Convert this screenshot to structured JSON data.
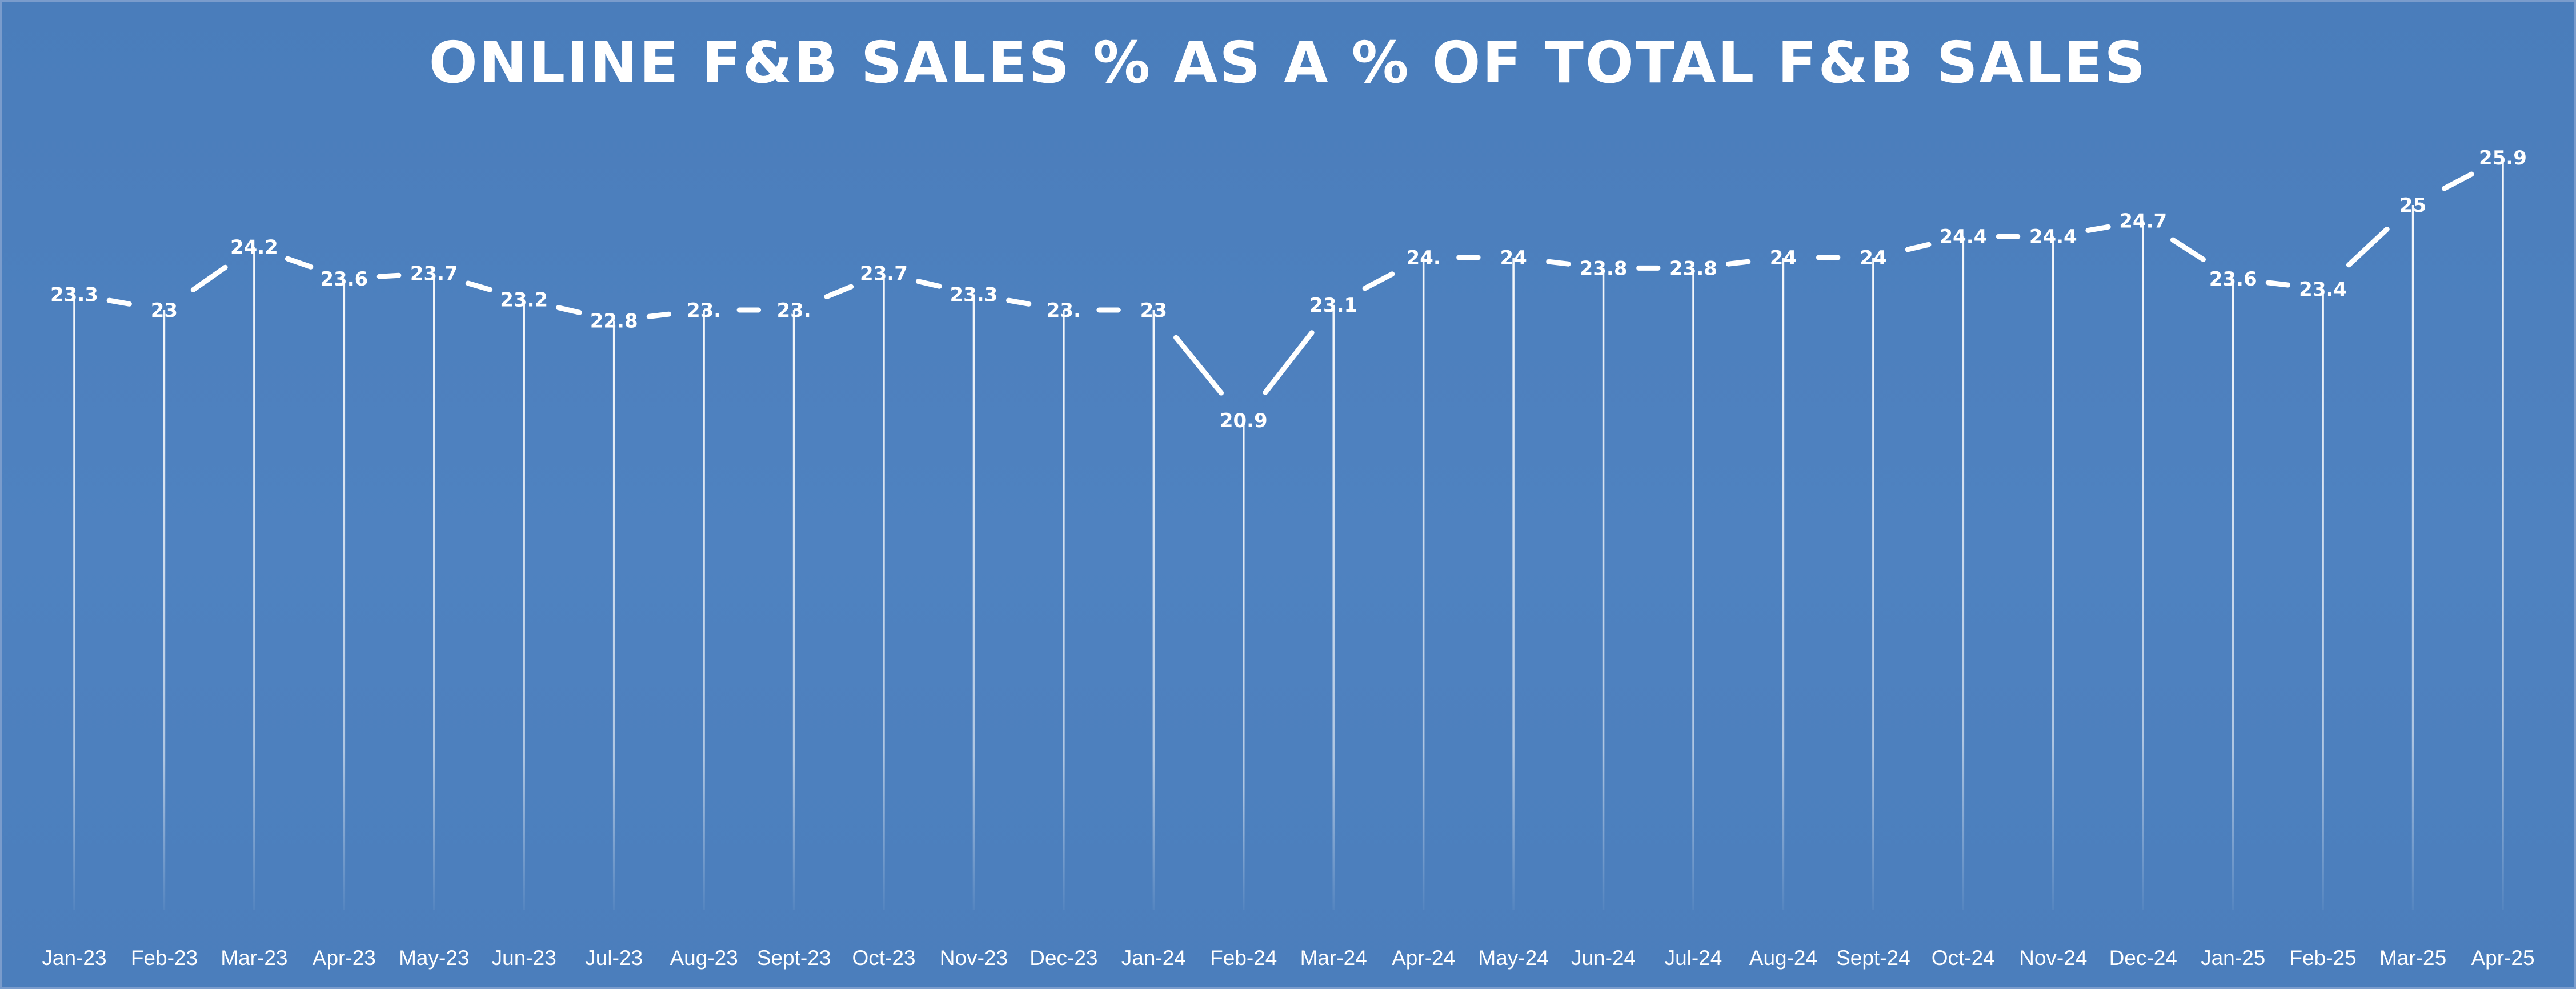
{
  "chart_data": {
    "type": "line",
    "title": "ONLINE F&B SALES % AS A % OF TOTAL F&B SALES",
    "categories": [
      "Jan-23",
      "Feb-23",
      "Mar-23",
      "Apr-23",
      "May-23",
      "Jun-23",
      "Jul-23",
      "Aug-23",
      "Sept-23",
      "Oct-23",
      "Nov-23",
      "Dec-23",
      "Jan-24",
      "Feb-24",
      "Mar-24",
      "Apr-24",
      "May-24",
      "Jun-24",
      "Jul-24",
      "Aug-24",
      "Sept-24",
      "Oct-24",
      "Nov-24",
      "Dec-24",
      "Jan-25",
      "Feb-25",
      "Mar-25",
      "Apr-25"
    ],
    "series": [
      {
        "values": [
          23.3,
          23.0,
          24.2,
          23.6,
          23.7,
          23.2,
          22.8,
          23.0,
          23.0,
          23.7,
          23.3,
          23.0,
          23.0,
          20.9,
          23.1,
          24.0,
          24.0,
          23.8,
          23.8,
          24.0,
          24.0,
          24.4,
          24.4,
          24.7,
          23.6,
          23.4,
          25.0,
          25.9
        ],
        "data_labels": [
          "23.3",
          "23",
          "24.2",
          "23.6",
          "23.7",
          "23.2",
          "22.8",
          "23.",
          "23.",
          "23.7",
          "23.3",
          "23.",
          "23",
          "20.9",
          "23.1",
          "24.",
          "24",
          "23.8",
          "23.8",
          "24",
          "24",
          "24.4",
          "24.4",
          "24.7",
          "23.6",
          "23.4",
          "25",
          "25.9"
        ]
      }
    ],
    "style": {
      "background": "#4f81bd",
      "line_color": "#ffffff",
      "drop_lines": true,
      "axes_visible": false,
      "legend": "none"
    }
  }
}
